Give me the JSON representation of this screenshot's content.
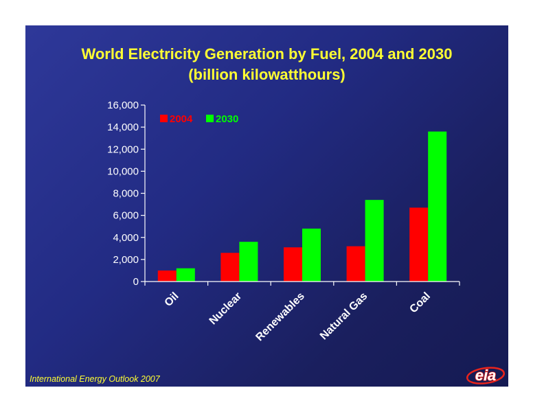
{
  "slide": {
    "title_line1": "World Electricity Generation by Fuel, 2004 and 2030",
    "title_line2": "(billion kilowatthours)",
    "footer": "International Energy Outlook 2007",
    "logo_text": "eia",
    "colors": {
      "background": "#222b83",
      "title": "#ffff33",
      "axis": "#ffffff",
      "logo": "#e8241c"
    }
  },
  "chart_data": {
    "type": "bar",
    "title": "World Electricity Generation by Fuel, 2004 and 2030",
    "subtitle": "(billion kilowatthours)",
    "xlabel": "",
    "ylabel": "",
    "categories": [
      "Oil",
      "Nuclear",
      "Renewables",
      "Natural Gas",
      "Coal"
    ],
    "series": [
      {
        "name": "2004",
        "color": "#ff0000",
        "values": [
          1000,
          2600,
          3100,
          3200,
          6700
        ]
      },
      {
        "name": "2030",
        "color": "#00ff00",
        "values": [
          1200,
          3600,
          4800,
          7400,
          13600
        ]
      }
    ],
    "ylim": [
      0,
      16000
    ],
    "yticks": [
      0,
      2000,
      4000,
      6000,
      8000,
      10000,
      12000,
      14000,
      16000
    ],
    "ytick_labels": [
      "0",
      "2,000",
      "4,000",
      "6,000",
      "8,000",
      "10,000",
      "12,000",
      "14,000",
      "16,000"
    ],
    "grid": false,
    "legend_position": "top-left"
  }
}
